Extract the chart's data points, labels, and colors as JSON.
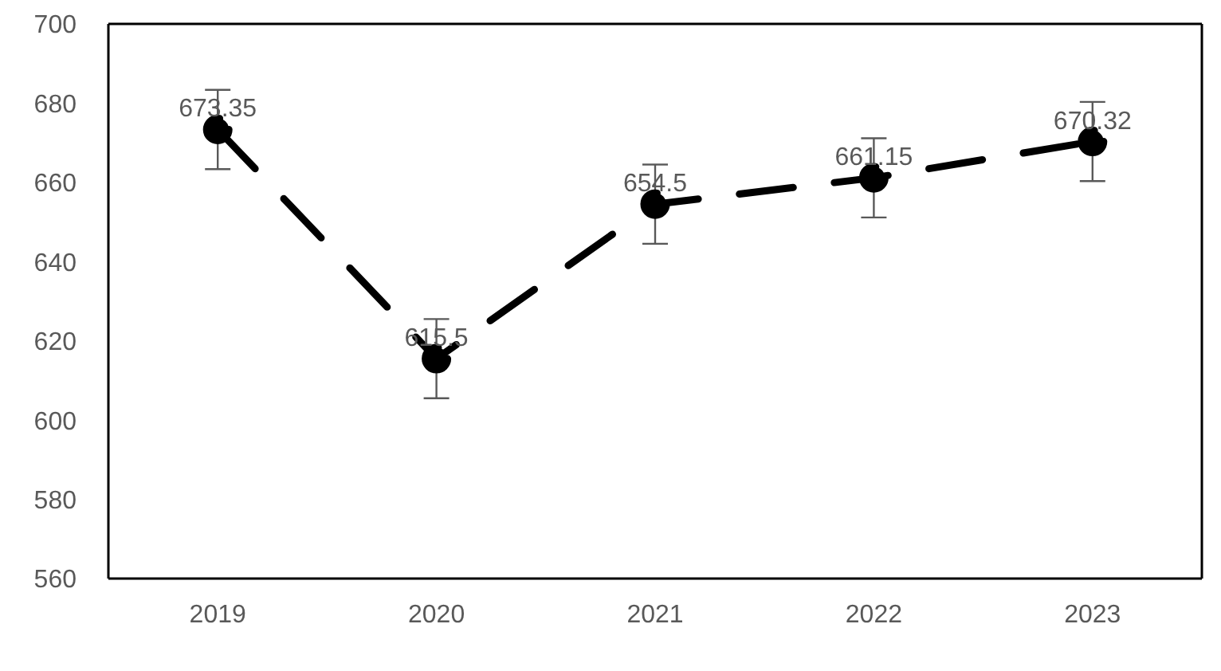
{
  "chart_data": {
    "type": "line",
    "categories": [
      "2019",
      "2020",
      "2021",
      "2022",
      "2023"
    ],
    "series": [
      {
        "color": "#000000",
        "values": [
          673.35,
          615.5,
          654.5,
          661.15,
          670.32
        ],
        "errors": [
          10,
          10,
          10,
          10,
          10
        ]
      }
    ],
    "ylim": [
      560,
      700
    ],
    "yticks": [
      560,
      580,
      600,
      620,
      640,
      660,
      680,
      700
    ],
    "data_labels": true,
    "marker": "circle",
    "line_style": "dashed",
    "grid": false,
    "legend": false
  }
}
